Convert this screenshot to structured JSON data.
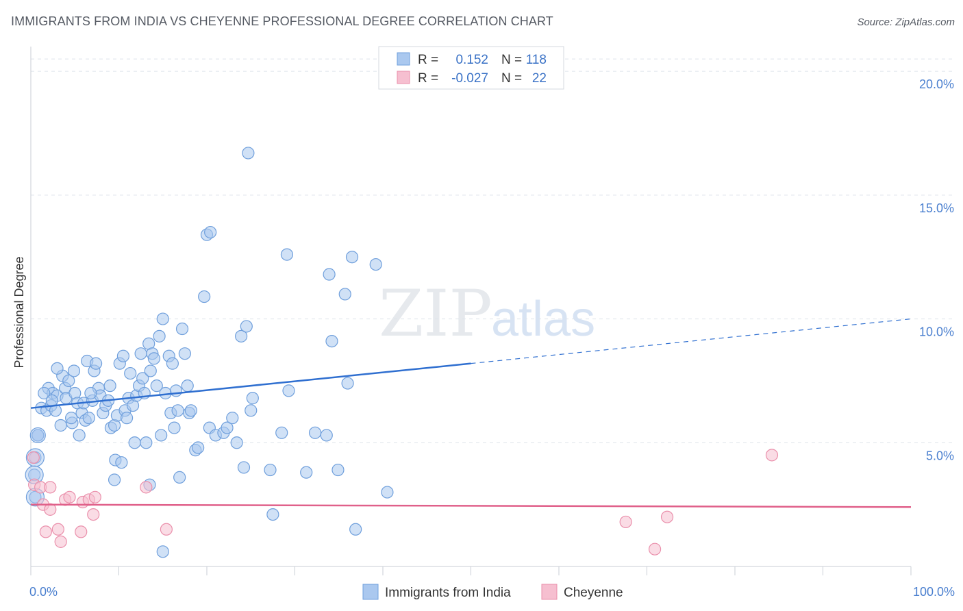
{
  "title": "IMMIGRANTS FROM INDIA VS CHEYENNE PROFESSIONAL DEGREE CORRELATION CHART",
  "source": "Source: ZipAtlas.com",
  "watermark": {
    "zip": "ZIP",
    "atlas": "atlas"
  },
  "colors": {
    "india_fill": "#aac8ef",
    "india_stroke": "#6f9fdc",
    "india_line": "#2f6fd0",
    "cheyenne_fill": "#f6bfd0",
    "cheyenne_stroke": "#ea8fab",
    "cheyenne_line": "#e0608a",
    "grid": "#dde3ea",
    "axis_text": "#4a7fcf"
  },
  "legend": {
    "r_label": "R =",
    "n_label": "N =",
    "rows": [
      {
        "r": "0.152",
        "n": "118"
      },
      {
        "r": "-0.027",
        "n": "22"
      }
    ]
  },
  "chart_data": {
    "type": "scatter",
    "title": "IMMIGRANTS FROM INDIA VS CHEYENNE PROFESSIONAL DEGREE CORRELATION CHART",
    "xlabel": "",
    "ylabel": "Professional Degree",
    "xlim": [
      0,
      100
    ],
    "ylim": [
      0,
      21
    ],
    "x_tick_labels": [
      "0.0%",
      "100.0%"
    ],
    "y_ticks": [
      5,
      10,
      15,
      20
    ],
    "y_tick_labels": [
      "5.0%",
      "10.0%",
      "15.0%",
      "20.0%"
    ],
    "legend_placement": "top-center",
    "series": [
      {
        "name": "Immigrants from India",
        "r": 0.152,
        "n": 118,
        "trend": {
          "x0": 0,
          "y0": 6.4,
          "x1": 50,
          "y1": 8.2,
          "dash_to_x": 100,
          "dash_to_y": 10.0
        },
        "points": [
          [
            0.5,
            4.4
          ],
          [
            0.4,
            3.7
          ],
          [
            0.5,
            2.8
          ],
          [
            0.8,
            5.3
          ],
          [
            1.2,
            6.4
          ],
          [
            1.8,
            6.3
          ],
          [
            2.0,
            7.2
          ],
          [
            2.3,
            6.5
          ],
          [
            2.5,
            7.0
          ],
          [
            2.8,
            6.3
          ],
          [
            3.0,
            6.9
          ],
          [
            3.4,
            5.7
          ],
          [
            3.6,
            7.7
          ],
          [
            3.9,
            7.2
          ],
          [
            4.0,
            6.8
          ],
          [
            4.3,
            7.5
          ],
          [
            4.7,
            5.8
          ],
          [
            4.9,
            7.9
          ],
          [
            5.0,
            7.0
          ],
          [
            5.3,
            6.6
          ],
          [
            5.5,
            5.3
          ],
          [
            5.8,
            6.2
          ],
          [
            6.0,
            6.6
          ],
          [
            6.2,
            5.9
          ],
          [
            6.4,
            8.3
          ],
          [
            6.6,
            6.0
          ],
          [
            7.0,
            6.7
          ],
          [
            7.2,
            7.9
          ],
          [
            7.4,
            8.2
          ],
          [
            7.7,
            7.2
          ],
          [
            7.9,
            6.9
          ],
          [
            8.2,
            6.2
          ],
          [
            8.5,
            6.5
          ],
          [
            8.8,
            6.7
          ],
          [
            9.0,
            7.3
          ],
          [
            9.1,
            5.6
          ],
          [
            9.5,
            5.7
          ],
          [
            9.6,
            4.3
          ],
          [
            9.8,
            6.1
          ],
          [
            10.1,
            8.2
          ],
          [
            10.3,
            4.2
          ],
          [
            10.5,
            8.5
          ],
          [
            10.7,
            6.3
          ],
          [
            10.9,
            6.0
          ],
          [
            11.1,
            6.8
          ],
          [
            11.3,
            7.8
          ],
          [
            11.6,
            6.5
          ],
          [
            11.8,
            5.0
          ],
          [
            12.0,
            6.9
          ],
          [
            12.3,
            7.3
          ],
          [
            12.5,
            8.6
          ],
          [
            12.7,
            7.6
          ],
          [
            12.9,
            7.0
          ],
          [
            13.1,
            5.0
          ],
          [
            13.4,
            9.0
          ],
          [
            13.6,
            7.9
          ],
          [
            13.8,
            8.6
          ],
          [
            14.0,
            8.4
          ],
          [
            14.3,
            7.3
          ],
          [
            14.6,
            9.3
          ],
          [
            14.8,
            5.3
          ],
          [
            15.0,
            10.0
          ],
          [
            15.3,
            7.0
          ],
          [
            15.7,
            8.5
          ],
          [
            15.9,
            6.2
          ],
          [
            16.1,
            8.2
          ],
          [
            16.3,
            5.6
          ],
          [
            16.5,
            7.1
          ],
          [
            16.7,
            6.3
          ],
          [
            16.9,
            3.6
          ],
          [
            17.2,
            9.6
          ],
          [
            17.5,
            8.6
          ],
          [
            17.8,
            7.3
          ],
          [
            18.0,
            6.2
          ],
          [
            18.2,
            6.3
          ],
          [
            18.7,
            4.7
          ],
          [
            19.0,
            4.8
          ],
          [
            19.7,
            10.9
          ],
          [
            20.0,
            13.4
          ],
          [
            20.4,
            13.5
          ],
          [
            20.3,
            5.6
          ],
          [
            21.0,
            5.3
          ],
          [
            21.9,
            5.4
          ],
          [
            22.3,
            5.6
          ],
          [
            22.9,
            6.0
          ],
          [
            23.4,
            5.0
          ],
          [
            23.9,
            9.3
          ],
          [
            24.2,
            4.0
          ],
          [
            24.5,
            9.7
          ],
          [
            24.7,
            16.7
          ],
          [
            25.0,
            6.3
          ],
          [
            25.2,
            6.8
          ],
          [
            27.2,
            3.9
          ],
          [
            27.5,
            2.1
          ],
          [
            28.5,
            5.4
          ],
          [
            29.1,
            12.6
          ],
          [
            29.3,
            7.1
          ],
          [
            31.3,
            3.8
          ],
          [
            32.3,
            5.4
          ],
          [
            33.6,
            5.3
          ],
          [
            33.9,
            11.8
          ],
          [
            34.2,
            9.1
          ],
          [
            34.9,
            3.9
          ],
          [
            35.7,
            11.0
          ],
          [
            36.0,
            7.4
          ],
          [
            36.5,
            12.5
          ],
          [
            36.9,
            1.5
          ],
          [
            39.2,
            12.2
          ],
          [
            40.5,
            3.0
          ],
          [
            15.0,
            0.6
          ],
          [
            13.5,
            3.3
          ],
          [
            3.0,
            8.0
          ],
          [
            6.8,
            7.0
          ],
          [
            0.8,
            5.3
          ],
          [
            1.5,
            7.0
          ],
          [
            2.4,
            6.7
          ],
          [
            4.6,
            6.0
          ],
          [
            9.5,
            3.5
          ]
        ]
      },
      {
        "name": "Cheyenne",
        "r": -0.027,
        "n": 22,
        "trend": {
          "x0": 0,
          "y0": 2.5,
          "x1": 100,
          "y1": 2.4
        },
        "points": [
          [
            0.3,
            4.4
          ],
          [
            0.4,
            3.3
          ],
          [
            1.1,
            3.2
          ],
          [
            1.4,
            2.5
          ],
          [
            1.7,
            1.4
          ],
          [
            2.2,
            3.2
          ],
          [
            2.2,
            2.3
          ],
          [
            3.1,
            1.5
          ],
          [
            3.4,
            1.0
          ],
          [
            3.9,
            2.7
          ],
          [
            4.4,
            2.8
          ],
          [
            5.7,
            1.4
          ],
          [
            5.9,
            2.6
          ],
          [
            6.6,
            2.7
          ],
          [
            7.1,
            2.1
          ],
          [
            7.3,
            2.8
          ],
          [
            13.1,
            3.2
          ],
          [
            15.4,
            1.5
          ],
          [
            67.6,
            1.8
          ],
          [
            70.9,
            0.7
          ],
          [
            72.3,
            2.0
          ],
          [
            84.2,
            4.5
          ]
        ]
      }
    ]
  }
}
